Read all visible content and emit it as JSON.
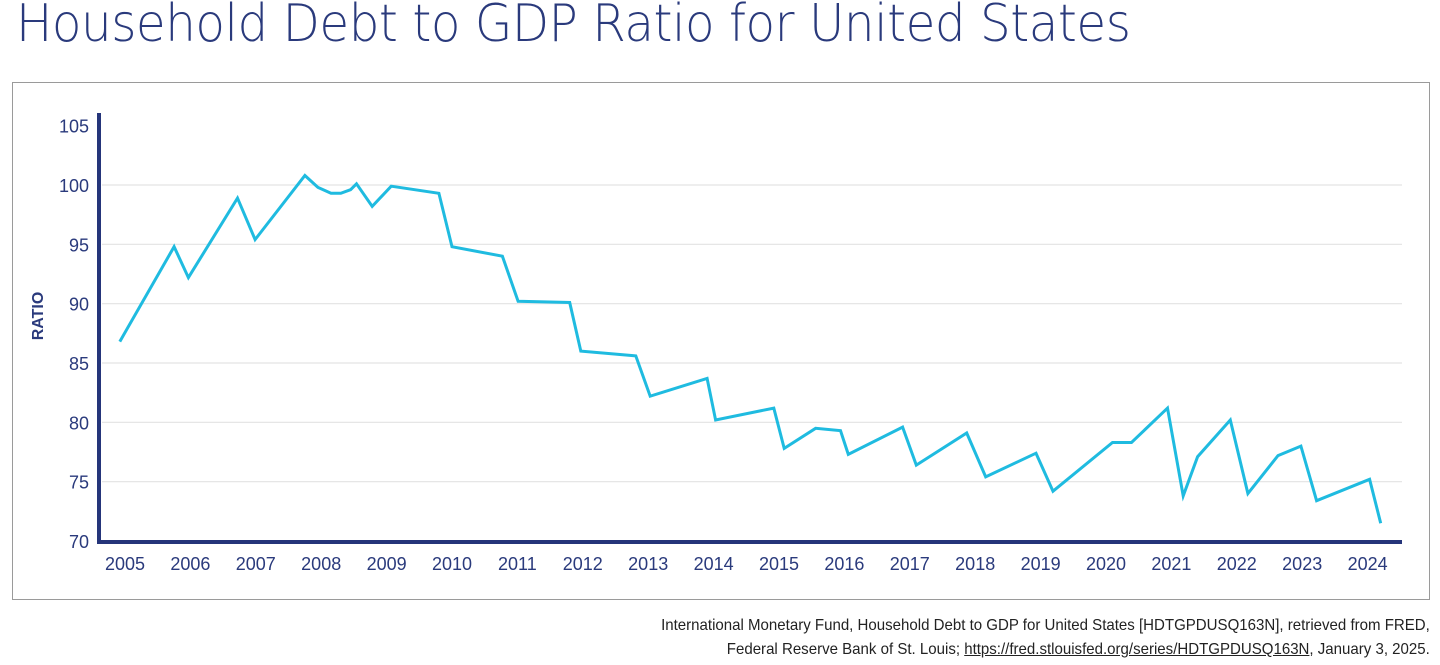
{
  "title": "Household Debt to GDP Ratio for United States",
  "source": {
    "line1": "International Monetary Fund, Household Debt to GDP for United States [HDTGPDUSQ163N], retrieved from FRED,",
    "line2_prefix": "Federal Reserve Bank of St. Louis; ",
    "link_text": "https://fred.stlouisfed.org/series/HDTGPDUSQ163N",
    "line2_suffix": ", January 3, 2025."
  },
  "colors": {
    "line": "#1fbbe0",
    "axis": "#25357a",
    "text": "#2a3a7c",
    "grid": "#e3e3e3"
  },
  "chart_data": {
    "type": "line",
    "title": "Household Debt to GDP Ratio for United States",
    "xlabel": "",
    "ylabel": "RATIO",
    "xlim": [
      2004.92,
      2024.55
    ],
    "ylim": [
      70,
      105
    ],
    "yticks": [
      70,
      75,
      80,
      85,
      90,
      95,
      100,
      105
    ],
    "xticks": [
      2005,
      2006,
      2007,
      2008,
      2009,
      2010,
      2011,
      2012,
      2013,
      2014,
      2015,
      2016,
      2017,
      2018,
      2019,
      2020,
      2021,
      2022,
      2023,
      2024
    ],
    "grid": true,
    "legend": "none",
    "series": [
      {
        "name": "Household Debt to GDP",
        "x": [
          2004.92,
          2005.75,
          2005.97,
          2006.72,
          2006.99,
          2007.75,
          2007.95,
          2008.15,
          2008.3,
          2008.45,
          2008.54,
          2008.78,
          2009.07,
          2009.8,
          2010.0,
          2010.77,
          2011.01,
          2011.8,
          2011.97,
          2012.81,
          2013.03,
          2013.9,
          2014.03,
          2014.92,
          2015.08,
          2015.56,
          2015.94,
          2016.06,
          2016.89,
          2017.1,
          2017.87,
          2018.16,
          2018.93,
          2019.19,
          2020.1,
          2020.39,
          2020.94,
          2021.18,
          2021.4,
          2021.9,
          2022.17,
          2022.63,
          2022.98,
          2023.22,
          2024.03,
          2024.2
        ],
        "y": [
          86.8,
          94.8,
          92.2,
          98.9,
          95.4,
          100.8,
          99.8,
          99.3,
          99.3,
          99.6,
          100.1,
          98.2,
          99.9,
          99.3,
          94.8,
          94.0,
          90.2,
          90.1,
          86.0,
          85.6,
          82.2,
          83.7,
          80.2,
          81.2,
          77.8,
          79.5,
          79.3,
          77.3,
          79.6,
          76.4,
          79.1,
          75.4,
          77.4,
          74.2,
          78.3,
          78.3,
          81.2,
          73.8,
          77.1,
          80.2,
          74.0,
          77.2,
          78.0,
          73.4,
          75.2,
          71.5
        ]
      }
    ]
  }
}
